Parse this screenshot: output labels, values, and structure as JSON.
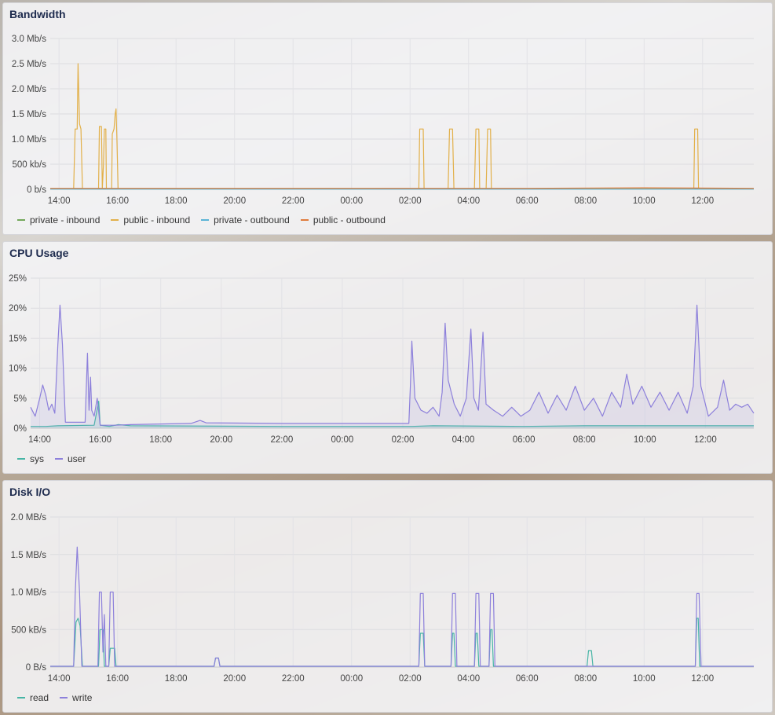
{
  "panels": {
    "bandwidth": {
      "title": "Bandwidth"
    },
    "cpu": {
      "title": "CPU Usage"
    },
    "disk": {
      "title": "Disk I/O"
    }
  },
  "chart_data": [
    {
      "id": "bandwidth",
      "type": "line",
      "title": "Bandwidth",
      "x_ticks": [
        "14:00",
        "16:00",
        "18:00",
        "20:00",
        "22:00",
        "00:00",
        "02:00",
        "04:00",
        "06:00",
        "08:00",
        "10:00",
        "12:00"
      ],
      "y_ticks": [
        "0 b/s",
        "500 kb/s",
        "1.0 Mb/s",
        "1.5 Mb/s",
        "2.0 Mb/s",
        "2.5 Mb/s",
        "3.0 Mb/s"
      ],
      "ylim": [
        0,
        3.0
      ],
      "xlim_hours": [
        13.7,
        37.75
      ],
      "grid": true,
      "legend_placement": "bottom-left",
      "series": [
        {
          "name": "private - inbound",
          "color": "#73a85a",
          "points": [
            [
              13.7,
              0.01
            ],
            [
              20,
              0.01
            ],
            [
              30,
              0.01
            ],
            [
              37.75,
              0.01
            ]
          ]
        },
        {
          "name": "public - inbound",
          "color": "#e2b04a",
          "points": [
            [
              13.7,
              0.01
            ],
            [
              14.5,
              0.01
            ],
            [
              14.55,
              1.2
            ],
            [
              14.62,
              1.2
            ],
            [
              14.65,
              2.5
            ],
            [
              14.7,
              1.3
            ],
            [
              14.75,
              1.2
            ],
            [
              14.8,
              0.01
            ],
            [
              15.35,
              0.01
            ],
            [
              15.38,
              1.25
            ],
            [
              15.45,
              1.25
            ],
            [
              15.48,
              0.01
            ],
            [
              15.52,
              0.5
            ],
            [
              15.55,
              1.2
            ],
            [
              15.6,
              1.2
            ],
            [
              15.62,
              0.01
            ],
            [
              15.8,
              0.01
            ],
            [
              15.82,
              1.1
            ],
            [
              15.88,
              1.2
            ],
            [
              15.92,
              1.5
            ],
            [
              15.95,
              1.6
            ],
            [
              15.98,
              1.0
            ],
            [
              16.02,
              0.01
            ],
            [
              26.3,
              0.01
            ],
            [
              26.33,
              1.2
            ],
            [
              26.45,
              1.2
            ],
            [
              26.48,
              0.01
            ],
            [
              27.3,
              0.01
            ],
            [
              27.35,
              1.2
            ],
            [
              27.45,
              1.2
            ],
            [
              27.5,
              0.01
            ],
            [
              28.2,
              0.01
            ],
            [
              28.25,
              1.2
            ],
            [
              28.35,
              1.2
            ],
            [
              28.38,
              0.01
            ],
            [
              28.6,
              0.01
            ],
            [
              28.65,
              1.2
            ],
            [
              28.75,
              1.2
            ],
            [
              28.78,
              0.01
            ],
            [
              35.7,
              0.01
            ],
            [
              35.73,
              1.2
            ],
            [
              35.83,
              1.2
            ],
            [
              35.86,
              0.01
            ],
            [
              37.75,
              0.01
            ]
          ]
        },
        {
          "name": "private - outbound",
          "color": "#5ab4d6",
          "points": [
            [
              13.7,
              0.005
            ],
            [
              37.75,
              0.005
            ]
          ]
        },
        {
          "name": "public - outbound",
          "color": "#e07b3b",
          "points": [
            [
              13.7,
              0.02
            ],
            [
              30,
              0.02
            ],
            [
              34,
              0.03
            ],
            [
              37.75,
              0.02
            ]
          ]
        }
      ]
    },
    {
      "id": "cpu",
      "type": "area",
      "title": "CPU Usage",
      "x_ticks": [
        "14:00",
        "16:00",
        "18:00",
        "20:00",
        "22:00",
        "00:00",
        "02:00",
        "04:00",
        "06:00",
        "08:00",
        "10:00",
        "12:00"
      ],
      "y_ticks": [
        "0%",
        "5%",
        "10%",
        "15%",
        "20%",
        "25%"
      ],
      "ylim": [
        0,
        25
      ],
      "xlim_hours": [
        13.7,
        37.6
      ],
      "grid": true,
      "legend_placement": "bottom-left",
      "series": [
        {
          "name": "sys",
          "color": "#46b5a5",
          "points": [
            [
              13.7,
              0.3
            ],
            [
              14.2,
              0.3
            ],
            [
              14.6,
              0.4
            ],
            [
              15.8,
              0.5
            ],
            [
              15.95,
              4.5
            ],
            [
              16.0,
              0.5
            ],
            [
              16.3,
              0.3
            ],
            [
              16.6,
              0.6
            ],
            [
              17,
              0.4
            ],
            [
              22,
              0.3
            ],
            [
              26.3,
              0.3
            ],
            [
              27,
              0.4
            ],
            [
              30,
              0.3
            ],
            [
              32,
              0.4
            ],
            [
              34,
              0.4
            ],
            [
              37.6,
              0.4
            ]
          ]
        },
        {
          "name": "user",
          "color": "#8d80db",
          "points": [
            [
              13.7,
              3.5
            ],
            [
              13.85,
              2.0
            ],
            [
              14.0,
              5
            ],
            [
              14.1,
              7.2
            ],
            [
              14.2,
              5.5
            ],
            [
              14.3,
              3
            ],
            [
              14.4,
              4
            ],
            [
              14.5,
              2.5
            ],
            [
              14.6,
              14
            ],
            [
              14.67,
              20.5
            ],
            [
              14.75,
              14
            ],
            [
              14.85,
              1
            ],
            [
              15.5,
              1
            ],
            [
              15.58,
              12.5
            ],
            [
              15.63,
              3
            ],
            [
              15.68,
              8.5
            ],
            [
              15.72,
              3
            ],
            [
              15.8,
              2
            ],
            [
              15.9,
              5
            ],
            [
              16.0,
              0.5
            ],
            [
              16.5,
              0.5
            ],
            [
              17,
              0.6
            ],
            [
              19,
              0.8
            ],
            [
              19.3,
              1.3
            ],
            [
              19.5,
              0.9
            ],
            [
              22,
              0.8
            ],
            [
              24,
              0.8
            ],
            [
              26.2,
              0.8
            ],
            [
              26.25,
              7
            ],
            [
              26.3,
              14.5
            ],
            [
              26.4,
              5
            ],
            [
              26.6,
              3
            ],
            [
              26.8,
              2.5
            ],
            [
              27,
              3.5
            ],
            [
              27.2,
              2
            ],
            [
              27.3,
              6
            ],
            [
              27.4,
              17.5
            ],
            [
              27.5,
              8
            ],
            [
              27.7,
              4
            ],
            [
              27.9,
              2
            ],
            [
              28.1,
              5
            ],
            [
              28.25,
              16.5
            ],
            [
              28.35,
              5
            ],
            [
              28.5,
              3
            ],
            [
              28.65,
              16
            ],
            [
              28.75,
              4
            ],
            [
              29,
              3
            ],
            [
              29.3,
              2
            ],
            [
              29.6,
              3.5
            ],
            [
              29.9,
              2
            ],
            [
              30.2,
              3
            ],
            [
              30.5,
              6
            ],
            [
              30.8,
              2.5
            ],
            [
              31.1,
              5.5
            ],
            [
              31.4,
              3
            ],
            [
              31.7,
              7
            ],
            [
              32,
              3
            ],
            [
              32.3,
              5
            ],
            [
              32.6,
              2
            ],
            [
              32.9,
              6
            ],
            [
              33.2,
              3.5
            ],
            [
              33.4,
              9
            ],
            [
              33.6,
              4
            ],
            [
              33.9,
              7
            ],
            [
              34.2,
              3.5
            ],
            [
              34.5,
              6
            ],
            [
              34.8,
              3
            ],
            [
              35.1,
              6
            ],
            [
              35.4,
              2.5
            ],
            [
              35.6,
              7
            ],
            [
              35.72,
              20.5
            ],
            [
              35.85,
              7
            ],
            [
              36.1,
              2
            ],
            [
              36.4,
              3.5
            ],
            [
              36.6,
              8
            ],
            [
              36.8,
              3
            ],
            [
              37,
              4
            ],
            [
              37.2,
              3.5
            ],
            [
              37.4,
              4
            ],
            [
              37.6,
              2.5
            ]
          ]
        }
      ]
    },
    {
      "id": "disk",
      "type": "line",
      "title": "Disk I/O",
      "x_ticks": [
        "14:00",
        "16:00",
        "18:00",
        "20:00",
        "22:00",
        "00:00",
        "02:00",
        "04:00",
        "06:00",
        "08:00",
        "10:00",
        "12:00"
      ],
      "y_ticks": [
        "0 B/s",
        "500 kB/s",
        "1.0 MB/s",
        "1.5 MB/s",
        "2.0 MB/s"
      ],
      "ylim": [
        0,
        2.0
      ],
      "xlim_hours": [
        13.7,
        37.75
      ],
      "grid": true,
      "legend_placement": "bottom-left",
      "series": [
        {
          "name": "read",
          "color": "#46b5a5",
          "points": [
            [
              13.7,
              0.01
            ],
            [
              14.5,
              0.01
            ],
            [
              14.58,
              0.6
            ],
            [
              14.65,
              0.65
            ],
            [
              14.72,
              0.55
            ],
            [
              14.8,
              0.01
            ],
            [
              15.35,
              0.01
            ],
            [
              15.4,
              0.5
            ],
            [
              15.5,
              0.5
            ],
            [
              15.55,
              0.01
            ],
            [
              15.7,
              0.01
            ],
            [
              15.75,
              0.25
            ],
            [
              15.9,
              0.25
            ],
            [
              15.95,
              0.01
            ],
            [
              19.3,
              0.01
            ],
            [
              19.35,
              0.12
            ],
            [
              19.45,
              0.12
            ],
            [
              19.5,
              0.01
            ],
            [
              26.3,
              0.01
            ],
            [
              26.35,
              0.45
            ],
            [
              26.45,
              0.45
            ],
            [
              26.5,
              0.01
            ],
            [
              27.4,
              0.01
            ],
            [
              27.45,
              0.45
            ],
            [
              27.5,
              0.45
            ],
            [
              27.55,
              0.01
            ],
            [
              28.2,
              0.01
            ],
            [
              28.25,
              0.45
            ],
            [
              28.3,
              0.45
            ],
            [
              28.35,
              0.01
            ],
            [
              28.7,
              0.01
            ],
            [
              28.75,
              0.5
            ],
            [
              28.8,
              0.5
            ],
            [
              28.85,
              0.01
            ],
            [
              32.05,
              0.01
            ],
            [
              32.1,
              0.22
            ],
            [
              32.2,
              0.22
            ],
            [
              32.25,
              0.01
            ],
            [
              35.75,
              0.01
            ],
            [
              35.8,
              0.65
            ],
            [
              35.85,
              0.65
            ],
            [
              35.9,
              0.01
            ],
            [
              37.75,
              0.01
            ]
          ]
        },
        {
          "name": "write",
          "color": "#8d80db",
          "points": [
            [
              13.7,
              0.01
            ],
            [
              14.5,
              0.01
            ],
            [
              14.55,
              0.95
            ],
            [
              14.62,
              1.6
            ],
            [
              14.7,
              1.0
            ],
            [
              14.78,
              0.01
            ],
            [
              15.33,
              0.01
            ],
            [
              15.38,
              1.0
            ],
            [
              15.45,
              1.0
            ],
            [
              15.5,
              0.2
            ],
            [
              15.55,
              0.7
            ],
            [
              15.6,
              0.01
            ],
            [
              15.7,
              0.01
            ],
            [
              15.75,
              1.0
            ],
            [
              15.85,
              1.0
            ],
            [
              15.9,
              0.01
            ],
            [
              19.3,
              0.01
            ],
            [
              19.35,
              0.12
            ],
            [
              19.45,
              0.12
            ],
            [
              19.5,
              0.01
            ],
            [
              26.3,
              0.01
            ],
            [
              26.35,
              0.98
            ],
            [
              26.45,
              0.98
            ],
            [
              26.5,
              0.01
            ],
            [
              27.4,
              0.01
            ],
            [
              27.45,
              0.98
            ],
            [
              27.55,
              0.98
            ],
            [
              27.6,
              0.01
            ],
            [
              28.2,
              0.01
            ],
            [
              28.25,
              0.98
            ],
            [
              28.35,
              0.98
            ],
            [
              28.4,
              0.01
            ],
            [
              28.7,
              0.01
            ],
            [
              28.75,
              0.98
            ],
            [
              28.85,
              0.98
            ],
            [
              28.9,
              0.01
            ],
            [
              35.75,
              0.01
            ],
            [
              35.8,
              0.98
            ],
            [
              35.88,
              0.98
            ],
            [
              35.95,
              0.01
            ],
            [
              37.75,
              0.01
            ]
          ]
        }
      ]
    }
  ]
}
